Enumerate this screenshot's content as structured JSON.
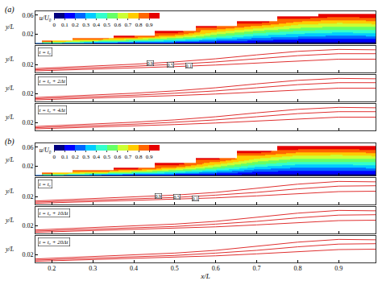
{
  "chart_data": [
    {
      "panel": "(a)",
      "type": "heatmap",
      "xlim": [
        0.16,
        0.99
      ],
      "xticks": [
        0.2,
        0.3,
        0.4,
        0.5,
        0.6,
        0.7,
        0.8,
        0.9
      ],
      "ylim": [
        0,
        0.068
      ],
      "yticks": [
        0.02,
        0.06
      ],
      "y_label": "y/L",
      "tick_labels": "y",
      "x": [
        0.15,
        0.2,
        0.3,
        0.4,
        0.5,
        0.6,
        0.7,
        0.8,
        0.9,
        1.0
      ],
      "y": [
        0,
        0.005,
        0.01,
        0.015,
        0.02,
        0.025,
        0.03,
        0.035,
        0.04,
        0.045,
        0.05,
        0.055,
        0.06,
        0.065
      ],
      "z": [
        [
          0.2,
          0.1,
          0.05,
          0,
          0,
          0,
          0,
          0,
          0,
          0
        ],
        [
          null,
          0.8,
          0.5,
          0.4,
          0.3,
          0.2,
          0.15,
          0.12,
          0.1,
          0.12
        ],
        [
          null,
          null,
          0.85,
          0.65,
          0.5,
          0.35,
          0.25,
          0.2,
          0.18,
          0.2
        ],
        [
          null,
          null,
          null,
          0.9,
          0.7,
          0.5,
          0.35,
          0.3,
          0.26,
          0.28
        ],
        [
          null,
          null,
          null,
          null,
          0.85,
          0.6,
          0.45,
          0.38,
          0.34,
          0.36
        ],
        [
          null,
          null,
          null,
          null,
          0.95,
          0.7,
          0.55,
          0.46,
          0.42,
          0.44
        ],
        [
          null,
          null,
          null,
          null,
          null,
          0.8,
          0.65,
          0.55,
          0.5,
          0.52
        ],
        [
          null,
          null,
          null,
          null,
          null,
          0.9,
          0.75,
          0.63,
          0.58,
          0.6
        ],
        [
          null,
          null,
          null,
          null,
          null,
          null,
          0.85,
          0.7,
          0.65,
          0.68
        ],
        [
          null,
          null,
          null,
          null,
          null,
          null,
          0.95,
          0.78,
          0.72,
          0.76
        ],
        [
          null,
          null,
          null,
          null,
          null,
          null,
          null,
          0.86,
          0.8,
          0.84
        ],
        [
          null,
          null,
          null,
          null,
          null,
          null,
          null,
          0.95,
          0.88,
          0.92
        ],
        [
          null,
          null,
          null,
          null,
          null,
          null,
          null,
          null,
          0.95,
          0.95
        ],
        [
          null,
          null,
          null,
          null,
          null,
          null,
          null,
          null,
          null,
          null
        ]
      ],
      "colorbar": {
        "title": "u/U₀",
        "range": [
          0,
          1
        ],
        "ticks": [
          0,
          0.1,
          0.2,
          0.3,
          0.4,
          0.5,
          0.6,
          0.7,
          0.8,
          0.9
        ]
      }
    },
    {
      "type": "line",
      "annotation": "t = t₀",
      "xlim": [
        0.16,
        0.99
      ],
      "xticks": [
        0.2,
        0.3,
        0.4,
        0.5,
        0.6,
        0.7,
        0.8,
        0.9
      ],
      "ylim": [
        0,
        0.068
      ],
      "yticks": [
        0.02
      ],
      "y_label": "y/L",
      "tick_labels": "y",
      "x": [
        0.16,
        0.3,
        0.4,
        0.5,
        0.6,
        0.7,
        0.8,
        0.9,
        0.99
      ],
      "series": [
        {
          "color": "#e03030",
          "values": [
            0.01,
            0.016,
            0.021,
            0.027,
            0.035,
            0.045,
            0.054,
            0.059,
            0.058
          ],
          "label": {
            "text": "0.9",
            "x": 0.44,
            "y": 0.024
          }
        },
        {
          "color": "#e03030",
          "values": [
            0.007,
            0.012,
            0.016,
            0.021,
            0.027,
            0.035,
            0.043,
            0.048,
            0.048
          ],
          "label": {
            "text": "0.5",
            "x": 0.49,
            "y": 0.02
          }
        },
        {
          "color": "#e03030",
          "values": [
            0.004,
            0.008,
            0.011,
            0.015,
            0.019,
            0.024,
            0.03,
            0.034,
            0.034
          ],
          "label": {
            "text": "0.1",
            "x": 0.535,
            "y": 0.017
          }
        }
      ]
    },
    {
      "type": "line",
      "annotation": "t = t₀ + 2Δt",
      "xlim": [
        0.16,
        0.99
      ],
      "xticks": [
        0.2,
        0.3,
        0.4,
        0.5,
        0.6,
        0.7,
        0.8,
        0.9
      ],
      "ylim": [
        0,
        0.068
      ],
      "yticks": [
        0.02
      ],
      "y_label": "y/L",
      "tick_labels": "y",
      "x": [
        0.16,
        0.3,
        0.4,
        0.5,
        0.6,
        0.7,
        0.8,
        0.9,
        0.99
      ],
      "series": [
        {
          "color": "#e03030",
          "values": [
            0.01,
            0.016,
            0.021,
            0.027,
            0.035,
            0.045,
            0.054,
            0.059,
            0.058
          ]
        },
        {
          "color": "#e03030",
          "values": [
            0.007,
            0.012,
            0.016,
            0.021,
            0.027,
            0.035,
            0.043,
            0.048,
            0.048
          ]
        },
        {
          "color": "#e03030",
          "values": [
            0.004,
            0.008,
            0.011,
            0.015,
            0.019,
            0.024,
            0.03,
            0.034,
            0.034
          ]
        }
      ]
    },
    {
      "type": "line",
      "annotation": "t = t₀ + 4Δt",
      "xlim": [
        0.16,
        0.99
      ],
      "xticks": [
        0.2,
        0.3,
        0.4,
        0.5,
        0.6,
        0.7,
        0.8,
        0.9
      ],
      "ylim": [
        0,
        0.068
      ],
      "yticks": [
        0.02
      ],
      "y_label": "y/L",
      "tick_labels": "y",
      "x": [
        0.16,
        0.3,
        0.4,
        0.5,
        0.6,
        0.7,
        0.8,
        0.9,
        0.99
      ],
      "series": [
        {
          "color": "#e03030",
          "values": [
            0.01,
            0.016,
            0.021,
            0.027,
            0.035,
            0.045,
            0.054,
            0.059,
            0.058
          ]
        },
        {
          "color": "#e03030",
          "values": [
            0.007,
            0.012,
            0.016,
            0.021,
            0.027,
            0.035,
            0.043,
            0.048,
            0.048
          ]
        },
        {
          "color": "#e03030",
          "values": [
            0.004,
            0.008,
            0.011,
            0.015,
            0.019,
            0.024,
            0.03,
            0.034,
            0.034
          ]
        }
      ]
    },
    {
      "panel": "(b)",
      "type": "heatmap",
      "xlim": [
        0.16,
        0.99
      ],
      "xticks": [
        0.2,
        0.3,
        0.4,
        0.5,
        0.6,
        0.7,
        0.8,
        0.9
      ],
      "ylim": [
        0,
        0.068
      ],
      "yticks": [
        0.02,
        0.06
      ],
      "y_label": "y/L",
      "tick_labels": "y",
      "x": [
        0.15,
        0.2,
        0.3,
        0.4,
        0.5,
        0.6,
        0.7,
        0.8,
        0.9,
        1.0
      ],
      "y": [
        0,
        0.005,
        0.01,
        0.015,
        0.02,
        0.025,
        0.03,
        0.035,
        0.04,
        0.045,
        0.05,
        0.055,
        0.06,
        0.065
      ],
      "z": [
        [
          0.2,
          0.1,
          0.05,
          0,
          0,
          0,
          0,
          0,
          0,
          0
        ],
        [
          null,
          0.8,
          0.55,
          0.4,
          0.3,
          0.2,
          0.12,
          0.1,
          0.1,
          0.12
        ],
        [
          null,
          null,
          0.88,
          0.68,
          0.5,
          0.35,
          0.22,
          0.18,
          0.18,
          0.2
        ],
        [
          null,
          null,
          null,
          0.92,
          0.7,
          0.5,
          0.32,
          0.26,
          0.26,
          0.28
        ],
        [
          null,
          null,
          null,
          null,
          0.86,
          0.62,
          0.42,
          0.34,
          0.34,
          0.36
        ],
        [
          null,
          null,
          null,
          null,
          0.95,
          0.72,
          0.52,
          0.42,
          0.42,
          0.44
        ],
        [
          null,
          null,
          null,
          null,
          null,
          0.82,
          0.6,
          0.5,
          0.5,
          0.52
        ],
        [
          null,
          null,
          null,
          null,
          null,
          0.92,
          0.68,
          0.58,
          0.58,
          0.6
        ],
        [
          null,
          null,
          null,
          null,
          null,
          null,
          0.76,
          0.66,
          0.65,
          0.68
        ],
        [
          null,
          null,
          null,
          null,
          null,
          null,
          0.85,
          0.74,
          0.72,
          0.76
        ],
        [
          null,
          null,
          null,
          null,
          null,
          null,
          0.94,
          0.82,
          0.8,
          0.84
        ],
        [
          null,
          null,
          null,
          null,
          null,
          null,
          null,
          0.9,
          0.88,
          0.92
        ],
        [
          null,
          null,
          null,
          null,
          null,
          null,
          null,
          0.96,
          0.95,
          0.95
        ],
        [
          null,
          null,
          null,
          null,
          null,
          null,
          null,
          null,
          null,
          null
        ]
      ],
      "colorbar": {
        "title": "u/U₀",
        "range": [
          0,
          1
        ],
        "ticks": [
          0,
          0.1,
          0.2,
          0.3,
          0.4,
          0.5,
          0.6,
          0.7,
          0.8,
          0.9
        ]
      }
    },
    {
      "type": "line",
      "annotation": "t = t₀",
      "xlim": [
        0.16,
        0.99
      ],
      "xticks": [
        0.2,
        0.3,
        0.4,
        0.5,
        0.6,
        0.7,
        0.8,
        0.9
      ],
      "ylim": [
        0,
        0.068
      ],
      "yticks": [
        0.02
      ],
      "y_label": "y/L",
      "tick_labels": "y",
      "x": [
        0.16,
        0.3,
        0.4,
        0.5,
        0.6,
        0.7,
        0.8,
        0.9,
        0.99
      ],
      "series": [
        {
          "color": "#e03030",
          "values": [
            0.009,
            0.015,
            0.019,
            0.024,
            0.031,
            0.041,
            0.052,
            0.059,
            0.058
          ],
          "label": {
            "text": "0.9",
            "x": 0.46,
            "y": 0.022
          }
        },
        {
          "color": "#e03030",
          "values": [
            0.006,
            0.011,
            0.014,
            0.018,
            0.024,
            0.031,
            0.04,
            0.047,
            0.048
          ],
          "label": {
            "text": "0.5",
            "x": 0.505,
            "y": 0.019
          }
        },
        {
          "color": "#e03030",
          "values": [
            0.003,
            0.007,
            0.01,
            0.013,
            0.017,
            0.022,
            0.028,
            0.033,
            0.034
          ],
          "label": {
            "text": "0.1",
            "x": 0.55,
            "y": 0.016
          }
        }
      ]
    },
    {
      "type": "line",
      "annotation": "t = t₀ + 10Δt",
      "xlim": [
        0.16,
        0.99
      ],
      "xticks": [
        0.2,
        0.3,
        0.4,
        0.5,
        0.6,
        0.7,
        0.8,
        0.9
      ],
      "ylim": [
        0,
        0.068
      ],
      "yticks": [
        0.02
      ],
      "y_label": "y/L",
      "tick_labels": "y",
      "x": [
        0.16,
        0.3,
        0.4,
        0.5,
        0.6,
        0.7,
        0.8,
        0.9,
        0.99
      ],
      "series": [
        {
          "color": "#e03030",
          "values": [
            0.009,
            0.015,
            0.019,
            0.024,
            0.031,
            0.041,
            0.052,
            0.059,
            0.058
          ]
        },
        {
          "color": "#e03030",
          "values": [
            0.006,
            0.011,
            0.014,
            0.018,
            0.024,
            0.031,
            0.04,
            0.047,
            0.048
          ]
        },
        {
          "color": "#e03030",
          "values": [
            0.003,
            0.007,
            0.01,
            0.013,
            0.017,
            0.022,
            0.028,
            0.033,
            0.034
          ]
        }
      ]
    },
    {
      "type": "line",
      "annotation": "t = t₀ + 20Δt",
      "xlim": [
        0.16,
        0.99
      ],
      "xticks": [
        0.2,
        0.3,
        0.4,
        0.5,
        0.6,
        0.7,
        0.8,
        0.9
      ],
      "ylim": [
        0,
        0.068
      ],
      "yticks": [
        0.02
      ],
      "y_label": "y/L",
      "x_label": "x/L",
      "tick_labels": true,
      "x": [
        0.16,
        0.3,
        0.4,
        0.5,
        0.6,
        0.7,
        0.8,
        0.9,
        0.99
      ],
      "series": [
        {
          "color": "#e03030",
          "values": [
            0.009,
            0.015,
            0.019,
            0.024,
            0.031,
            0.041,
            0.052,
            0.059,
            0.058
          ]
        },
        {
          "color": "#e03030",
          "values": [
            0.006,
            0.011,
            0.014,
            0.018,
            0.024,
            0.031,
            0.04,
            0.047,
            0.048
          ]
        },
        {
          "color": "#e03030",
          "values": [
            0.003,
            0.007,
            0.01,
            0.013,
            0.017,
            0.022,
            0.028,
            0.033,
            0.034
          ]
        }
      ]
    }
  ]
}
